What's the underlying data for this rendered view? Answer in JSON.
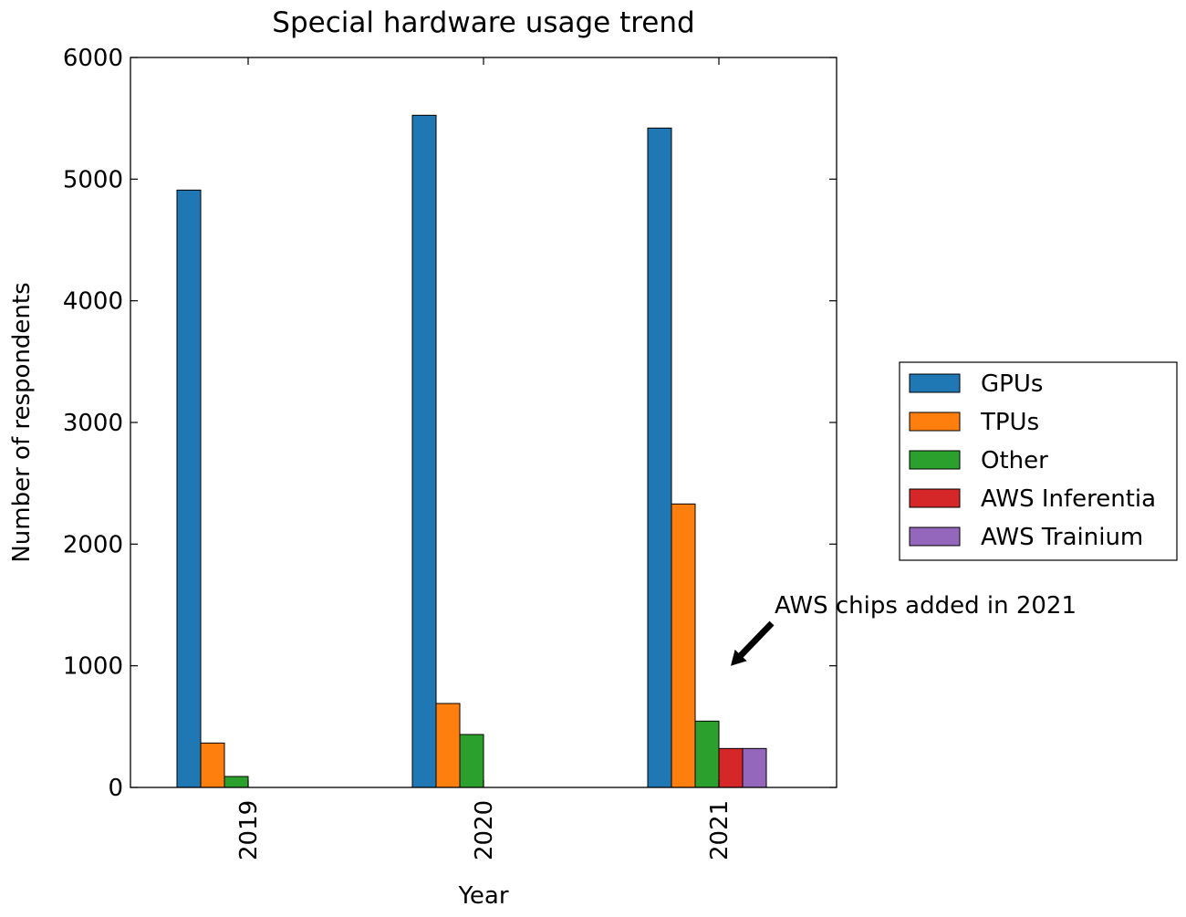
{
  "chart_data": {
    "type": "bar",
    "title": "Special hardware usage trend",
    "xlabel": "Year",
    "ylabel": "Number of respondents",
    "categories": [
      "2019",
      "2020",
      "2021"
    ],
    "ylim": [
      0,
      6000
    ],
    "yticks": [
      0,
      1000,
      2000,
      3000,
      4000,
      5000,
      6000
    ],
    "grid": false,
    "legend_position": "right",
    "series": [
      {
        "name": "GPUs",
        "color": "#1f77b4",
        "values": [
          4910,
          5525,
          5420
        ]
      },
      {
        "name": "TPUs",
        "color": "#ff7f0e",
        "values": [
          365,
          690,
          2330
        ]
      },
      {
        "name": "Other",
        "color": "#2ca02c",
        "values": [
          90,
          435,
          545
        ]
      },
      {
        "name": "AWS Inferentia",
        "color": "#d62728",
        "values": [
          0,
          0,
          320
        ]
      },
      {
        "name": "AWS Trainium",
        "color": "#9467bd",
        "values": [
          0,
          0,
          320
        ]
      }
    ],
    "annotation": {
      "text": "AWS chips added in 2021",
      "category": "2021",
      "y": 1000,
      "text_y": 1500
    }
  }
}
